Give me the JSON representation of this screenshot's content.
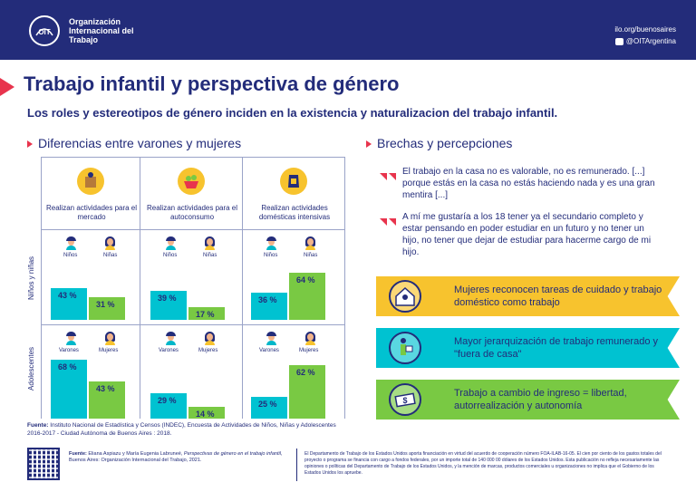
{
  "header": {
    "org_name": "Organización Internacional del Trabajo",
    "logo_text": "OIT",
    "website": "ilo.org/buenosaires",
    "twitter": "@OITArgentina"
  },
  "title": "Trabajo infantil y perspectiva de género",
  "subtitle": "Los roles y estereotipos de género inciden en la existencia y naturalizacion del trabajo infantil.",
  "left_section": {
    "heading": "Diferencias entre varones y mujeres",
    "row_labels": [
      "Niños y niñas",
      "Adolescentes"
    ],
    "categories": [
      {
        "label": "Realizan actividades para el mercado",
        "icon": "box-icon"
      },
      {
        "label": "Realizan actividades para el autoconsumo",
        "icon": "vegetable-basket-icon"
      },
      {
        "label": "Realizan actividades domésticas intensivas",
        "icon": "cleaning-glove-icon"
      }
    ],
    "child_labels": [
      "Niños",
      "Niñas"
    ],
    "teen_labels": [
      "Varones",
      "Mujeres"
    ],
    "source_label": "Fuente:",
    "source": "Instituto Nacional de Estadística y Censos (INDEC), Encuesta de Actividades de Niños, Niñas y Adolescentes 2016-2017 - Ciudad Autónoma de Buenos Aires : 2018."
  },
  "chart_data": {
    "type": "bar",
    "title": "Diferencias entre varones y mujeres",
    "categories": [
      "Realizan actividades para el mercado",
      "Realizan actividades para el autoconsumo",
      "Realizan actividades domésticas intensivas"
    ],
    "groups": [
      {
        "name": "Niños y niñas",
        "series": [
          {
            "name": "Niños",
            "values": [
              43,
              39,
              36
            ],
            "labels": [
              "43 %",
              "39 %",
              "36 %"
            ]
          },
          {
            "name": "Niñas",
            "values": [
              31,
              17,
              64
            ],
            "labels": [
              "31 %",
              "17 %",
              "64 %"
            ]
          }
        ]
      },
      {
        "name": "Adolescentes",
        "series": [
          {
            "name": "Varones",
            "values": [
              68,
              29,
              25
            ],
            "labels": [
              "68 %",
              "29 %",
              "25 %"
            ]
          },
          {
            "name": "Mujeres",
            "values": [
              43,
              14,
              62
            ],
            "labels": [
              "43 %",
              "14 %",
              "62 %"
            ]
          }
        ]
      }
    ],
    "ylim": [
      0,
      100
    ],
    "colors": {
      "male": "#00c2d1",
      "female": "#79c943"
    }
  },
  "right_section": {
    "heading": "Brechas y percepciones",
    "quotes": [
      "El trabajo en la casa no es valorable, no es remunerado. [...] porque estás en la casa no estás haciendo nada y es una gran mentira [...]",
      "A mí me gustaría a los 18 tener ya el secundario completo y estar pensando en poder estudiar en un futuro y no tener un hijo, no tener que dejar de estudiar para hacerme cargo de mi hijo."
    ],
    "bands": [
      {
        "text": "Mujeres reconocen tareas de cuidado y trabajo doméstico como trabajo",
        "color": "#f7c32e",
        "icon": "house-person-icon"
      },
      {
        "text": "Mayor jerarquización de trabajo remunerado y  \"fuera de casa\"",
        "color": "#00c2d1",
        "icon": "worker-carrying-box-icon"
      },
      {
        "text": "Trabajo a cambio de ingreso = libertad, autorrealización y autonomía",
        "color": "#79c943",
        "icon": "money-icon"
      }
    ]
  },
  "footer": {
    "source_label": "Fuente:",
    "source_authors": "Eliana Aspiazu y María Eugenia Labruneé, ",
    "source_work": "Perspectivas de género en el trabajo infantil,",
    "source_pub": " Buenos Aires: Organización Internacional del Trabajo, 2021.",
    "disclaimer": "El Departamento de Trabajo de los Estados Unidos aporta financiación en virtud del acuerdo de cooperación número FOA-ILAB-16-05. El cien por ciento de los gastos totales del proyecto o programa se financia con cargo a fondos federales, por un importe total de 140 000 00 dólares de los Estados Unidos. Esta publicación no refleja necesariamente las opiniones o políticas del Departamento de Trabajo de los Estados Unidos, y la mención de marcas, productos comerciales u organizaciones no implica que el Gobierno de los Estados Unidos los apruebe."
  },
  "colors": {
    "navy": "#232c7a",
    "red": "#e8344d",
    "teal": "#00c2d1",
    "green": "#79c943",
    "yellow": "#f7c32e"
  }
}
